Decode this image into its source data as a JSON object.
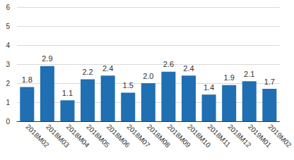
{
  "chart_data": {
    "type": "bar",
    "categories": [
      "2018M02",
      "2018M03",
      "2018M04",
      "2018M05",
      "2018M06",
      "2018M07",
      "2018M08",
      "2018M09",
      "2018M10",
      "2018M11",
      "2018M12",
      "2019M01",
      "2019M02"
    ],
    "values": [
      1.8,
      2.9,
      1.1,
      2.2,
      2.4,
      1.5,
      2.0,
      2.6,
      2.4,
      1.4,
      1.9,
      2.1,
      1.7
    ],
    "value_labels": [
      "1.8",
      "2.9",
      "1.1",
      "2.2",
      "2.4",
      "1.5",
      "2.0",
      "2.6",
      "2.4",
      "1.4",
      "1.9",
      "2.1",
      "1.7"
    ],
    "color": "#1f6fb2",
    "ylim": [
      0,
      6
    ],
    "yticks": [
      0,
      1,
      2,
      3,
      4,
      5,
      6
    ],
    "grid": true,
    "data_labels": true
  }
}
